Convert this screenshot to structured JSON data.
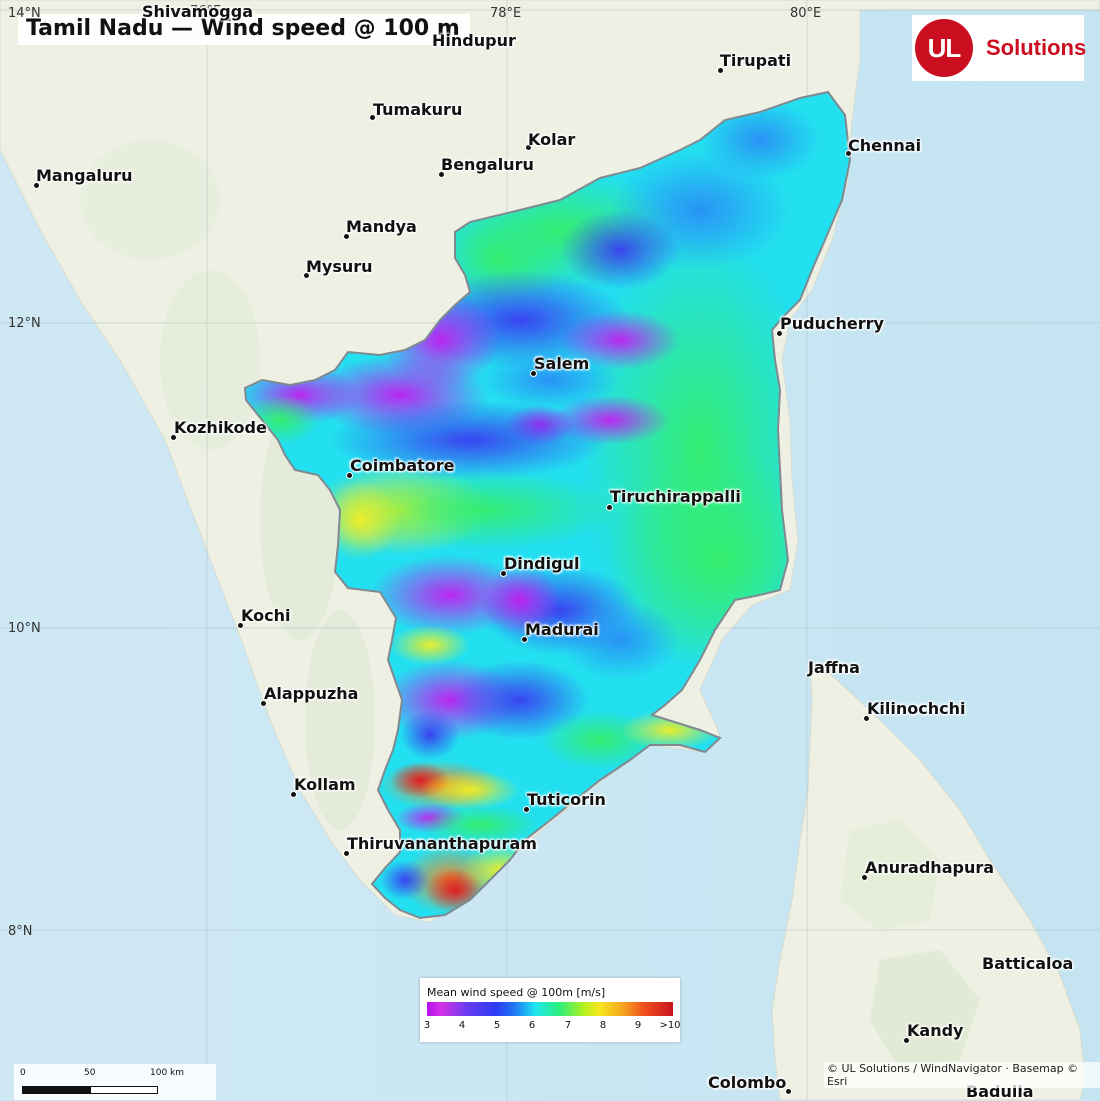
{
  "title": "Tamil Nadu — Wind speed @ 100 m",
  "grid_labels": {
    "lon_76": "76°E",
    "lon_78": "78°E",
    "lon_80": "80°E",
    "lat_14": "14°N",
    "lat_12": "12°N",
    "lat_10": "10°N",
    "lat_8": "8°N"
  },
  "cities": [
    {
      "name": "Shivamogga"
    },
    {
      "name": "Hindupur"
    },
    {
      "name": "Tirupati"
    },
    {
      "name": "Tumakuru"
    },
    {
      "name": "Kolar"
    },
    {
      "name": "Chennai"
    },
    {
      "name": "Bengaluru"
    },
    {
      "name": "Mangaluru"
    },
    {
      "name": "Mandya"
    },
    {
      "name": "Mysuru"
    },
    {
      "name": "Puducherry"
    },
    {
      "name": "Salem"
    },
    {
      "name": "Kozhikode"
    },
    {
      "name": "Coimbatore"
    },
    {
      "name": "Tiruchirappalli"
    },
    {
      "name": "Dindigul"
    },
    {
      "name": "Kochi"
    },
    {
      "name": "Madurai"
    },
    {
      "name": "Jaffna"
    },
    {
      "name": "Alappuzha"
    },
    {
      "name": "Kilinochchi"
    },
    {
      "name": "Kollam"
    },
    {
      "name": "Tuticorin"
    },
    {
      "name": "Thiruvananthapuram"
    },
    {
      "name": "Anuradhapura"
    },
    {
      "name": "Batticaloa"
    },
    {
      "name": "Kandy"
    },
    {
      "name": "Colombo"
    },
    {
      "name": "Badulla"
    }
  ],
  "logo": {
    "mark": "UL",
    "text": "Solutions",
    "color": "#ca0e1f"
  },
  "legend": {
    "title": "Mean wind speed @ 100m  [m/s]",
    "ticks": [
      "3",
      "4",
      "5",
      "6",
      "7",
      "8",
      "9",
      ">10"
    ]
  },
  "scale_bar": {
    "labels": [
      "0",
      "50",
      "100 km"
    ]
  },
  "attribution": "© UL Solutions / WindNavigator · Basemap © Esri",
  "colors": {
    "sea": "#c9e6f2",
    "land": "#eef0e6",
    "wind_low": "#b40ff0",
    "wind_mid": "#1fe6f0",
    "wind_high": "#c8141e"
  }
}
